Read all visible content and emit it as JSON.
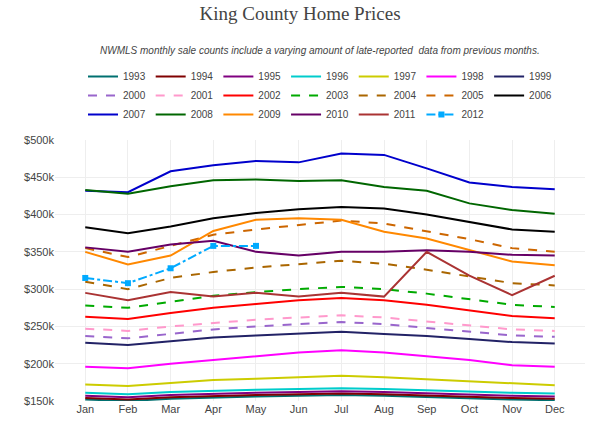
{
  "chart_data": {
    "type": "line",
    "title": "King County Home Prices",
    "subtitle": "NWMLS monthly sale counts include a varying amount of late-reported  data from previous months.",
    "categories": [
      "Jan",
      "Feb",
      "Mar",
      "Apr",
      "May",
      "Jun",
      "Jul",
      "Aug",
      "Sep",
      "Oct",
      "Nov",
      "Dec"
    ],
    "series": [
      {
        "name": "1993",
        "color": "#007070",
        "line_style": "solid",
        "values": [
          152000,
          150000,
          153000,
          155000,
          156000,
          157000,
          158000,
          157000,
          155000,
          154000,
          152000,
          151000
        ]
      },
      {
        "name": "1994",
        "color": "#800000",
        "line_style": "solid",
        "values": [
          154000,
          152000,
          155000,
          157000,
          158000,
          159000,
          160000,
          159000,
          157000,
          156000,
          154000,
          153000
        ]
      },
      {
        "name": "1995",
        "color": "#800080",
        "line_style": "solid",
        "values": [
          157000,
          155000,
          158000,
          160000,
          161000,
          162000,
          163000,
          162000,
          160000,
          159000,
          157000,
          156000
        ]
      },
      {
        "name": "1996",
        "color": "#00CCCC",
        "line_style": "solid",
        "values": [
          161000,
          159000,
          162000,
          164000,
          165000,
          166000,
          167000,
          166000,
          164000,
          163000,
          161000,
          160000
        ]
      },
      {
        "name": "1997",
        "color": "#CCCC00",
        "line_style": "solid",
        "values": [
          172000,
          170000,
          174000,
          178000,
          180000,
          182000,
          184000,
          182000,
          179000,
          176000,
          173000,
          171000
        ]
      },
      {
        "name": "1998",
        "color": "#FF00FF",
        "line_style": "solid",
        "values": [
          196000,
          194000,
          200000,
          205000,
          210000,
          215000,
          218000,
          215000,
          210000,
          205000,
          198000,
          196000
        ]
      },
      {
        "name": "1999",
        "color": "#222266",
        "line_style": "solid",
        "values": [
          228000,
          225000,
          230000,
          235000,
          238000,
          240000,
          243000,
          240000,
          237000,
          233000,
          229000,
          227000
        ]
      },
      {
        "name": "2000",
        "color": "#9966CC",
        "line_style": "dashed",
        "values": [
          237000,
          234000,
          240000,
          246000,
          250000,
          253000,
          256000,
          253000,
          248000,
          243000,
          238000,
          236000
        ]
      },
      {
        "name": "2001",
        "color": "#FF99CC",
        "line_style": "dashed",
        "values": [
          247000,
          244000,
          250000,
          255000,
          259000,
          262000,
          265000,
          262000,
          257000,
          251000,
          246000,
          244000
        ]
      },
      {
        "name": "2002",
        "color": "#FF0000",
        "line_style": "solid",
        "values": [
          263000,
          260000,
          268000,
          275000,
          280000,
          285000,
          288000,
          285000,
          279000,
          272000,
          264000,
          261000
        ]
      },
      {
        "name": "2003",
        "color": "#00AA00",
        "line_style": "dashed",
        "values": [
          278000,
          275000,
          283000,
          291000,
          296000,
          300000,
          303000,
          300000,
          294000,
          287000,
          279000,
          276000
        ]
      },
      {
        "name": "2004",
        "color": "#AA6600",
        "line_style": "dashed",
        "values": [
          310000,
          300000,
          315000,
          323000,
          329000,
          334000,
          338000,
          334000,
          326000,
          317000,
          308000,
          305000
        ]
      },
      {
        "name": "2005",
        "color": "#CC6600",
        "line_style": "dashed",
        "values": [
          355000,
          343000,
          358000,
          373000,
          380000,
          386000,
          392000,
          388000,
          378000,
          367000,
          355000,
          350000
        ]
      },
      {
        "name": "2006",
        "color": "#000000",
        "line_style": "solid",
        "values": [
          383000,
          375000,
          384000,
          395000,
          402000,
          407000,
          410000,
          408000,
          400000,
          390000,
          380000,
          377000
        ]
      },
      {
        "name": "2007",
        "color": "#0000CC",
        "line_style": "solid",
        "values": [
          432000,
          430000,
          458000,
          466000,
          472000,
          470000,
          482000,
          480000,
          462000,
          443000,
          437000,
          434000
        ]
      },
      {
        "name": "2008",
        "color": "#006600",
        "line_style": "solid",
        "values": [
          433000,
          428000,
          438000,
          446000,
          447000,
          445000,
          446000,
          437000,
          432000,
          415000,
          406000,
          401000
        ]
      },
      {
        "name": "2009",
        "color": "#FF8800",
        "line_style": "solid",
        "values": [
          350000,
          333000,
          345000,
          378000,
          393000,
          395000,
          393000,
          377000,
          368000,
          352000,
          337000,
          332000
        ]
      },
      {
        "name": "2010",
        "color": "#660066",
        "line_style": "solid",
        "values": [
          356000,
          350000,
          360000,
          365000,
          350000,
          345000,
          350000,
          350000,
          352000,
          350000,
          346000,
          345000
        ]
      },
      {
        "name": "2011",
        "color": "#AA3333",
        "line_style": "solid",
        "values": [
          295000,
          285000,
          296000,
          290000,
          295000,
          290000,
          295000,
          290000,
          350000,
          318000,
          292000,
          318000
        ]
      },
      {
        "name": "2012",
        "color": "#00AAFF",
        "line_style": "dashdot",
        "marker": "square",
        "values": [
          315000,
          308000,
          328000,
          358000,
          358000,
          null,
          null,
          null,
          null,
          null,
          null,
          null
        ]
      }
    ],
    "ylim": [
      150000,
      500000
    ],
    "yticks": [
      {
        "value": 150000,
        "label": "$150k"
      },
      {
        "value": 200000,
        "label": "$200k"
      },
      {
        "value": 250000,
        "label": "$250k"
      },
      {
        "value": 300000,
        "label": "$300k"
      },
      {
        "value": 350000,
        "label": "$350k"
      },
      {
        "value": 400000,
        "label": "$400k"
      },
      {
        "value": 450000,
        "label": "$450k"
      },
      {
        "value": 500000,
        "label": "$500k"
      }
    ],
    "grid": true,
    "legend": "top"
  }
}
